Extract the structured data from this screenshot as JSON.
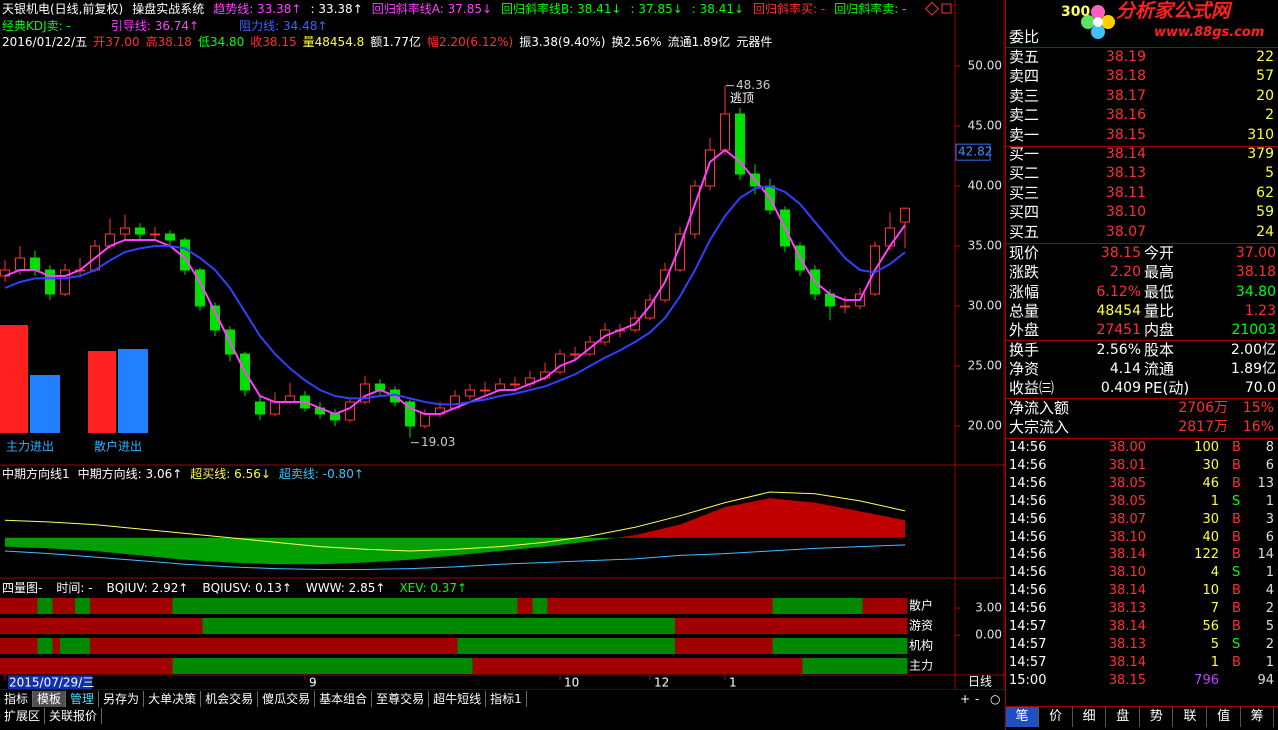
{
  "header": {
    "lines": [
      [
        {
          "text": "天银机电(日线,前复权)",
          "color": "#ffffff"
        },
        {
          "text": "操盘实战系统",
          "color": "#ffffff"
        },
        {
          "text": "趋势线: 33.38↑",
          "color": "#ff40ff"
        },
        {
          "text": ": 33.38↑",
          "color": "#ffffff"
        },
        {
          "text": "回归斜率线A: 37.85↓",
          "color": "#ff40ff"
        },
        {
          "text": "回归斜率线B: 38.41↓",
          "color": "#00ff00"
        },
        {
          "text": ": 37.85↓",
          "color": "#00ff00"
        },
        {
          "text": ": 38.41↓",
          "color": "#00ff00"
        },
        {
          "text": "回归斜率买: -",
          "color": "#ff3030"
        },
        {
          "text": "回归斜率卖: -",
          "color": "#00ff00"
        }
      ],
      [
        {
          "text": "经典KDJ卖: -",
          "color": "#00ff00"
        },
        {
          "text": "引导线: 36.74↑",
          "color": "#ff40ff"
        },
        {
          "text": "阻力线: 34.48↑",
          "color": "#4060ff"
        }
      ],
      [
        {
          "text": "2016/01/22/五",
          "color": "#ffffff"
        },
        {
          "text": "开37.00",
          "color": "#ff3030"
        },
        {
          "text": "高38.18",
          "color": "#ff3030"
        },
        {
          "text": "低34.80",
          "color": "#00ff00"
        },
        {
          "text": "收38.15",
          "color": "#ff3030"
        },
        {
          "text": "量48454.8",
          "color": "#ffff40"
        },
        {
          "text": "额1.77亿",
          "color": "#ffffff"
        },
        {
          "text": "幅2.20(6.12%)",
          "color": "#ff3030"
        },
        {
          "text": "振3.38(9.40%)",
          "color": "#ffffff"
        },
        {
          "text": "换2.56%",
          "color": "#ffffff"
        },
        {
          "text": "流通1.89亿",
          "color": "#ffffff"
        },
        {
          "text": "元器件",
          "color": "#ffffff"
        }
      ]
    ]
  },
  "chart": {
    "type": "candlestick",
    "up_color": "#ff3232",
    "down_color": "#00e000",
    "ylim": [
      16.75,
      55.5
    ],
    "yticks": [
      {
        "value": 50,
        "label": "50.00"
      },
      {
        "value": 45,
        "label": "45.00"
      },
      {
        "value": 40,
        "label": "40.00"
      },
      {
        "value": 35,
        "label": "35.00"
      },
      {
        "value": 30,
        "label": "30.00"
      },
      {
        "value": 25,
        "label": "25.00"
      },
      {
        "value": 20,
        "label": "20.00"
      }
    ],
    "last_price": 42.82,
    "candles": [
      [
        32.5,
        33,
        33.8,
        32
      ],
      [
        33,
        34,
        35,
        32.6
      ],
      [
        34,
        33,
        34.6,
        32.5
      ],
      [
        33,
        31,
        33.4,
        30.5
      ],
      [
        31,
        33,
        33.5,
        30.8
      ],
      [
        33,
        33,
        34,
        32.4
      ],
      [
        33,
        35,
        35.5,
        32.8
      ],
      [
        35,
        36,
        37.3,
        34.8
      ],
      [
        36,
        36.5,
        37.6,
        35.6
      ],
      [
        36.5,
        36,
        36.9,
        35.4
      ],
      [
        36,
        36,
        36.6,
        35.5
      ],
      [
        36,
        35.5,
        36.3,
        35
      ],
      [
        35.5,
        33,
        35.7,
        32.6
      ],
      [
        33,
        30,
        33.2,
        29.6
      ],
      [
        30,
        28,
        30.3,
        27.5
      ],
      [
        28,
        26,
        28.3,
        25.4
      ],
      [
        26,
        23,
        26.2,
        22.5
      ],
      [
        22,
        21,
        22.5,
        20.5
      ],
      [
        21,
        22,
        22.8,
        20.8
      ],
      [
        22,
        22.5,
        23.6,
        21.8
      ],
      [
        22.5,
        21.5,
        22.9,
        21.2
      ],
      [
        21.5,
        21,
        22,
        20.6
      ],
      [
        21,
        20.5,
        21.4,
        20
      ],
      [
        20.5,
        22,
        22.4,
        20.3
      ],
      [
        22,
        23.5,
        24.2,
        21.8
      ],
      [
        23.5,
        23,
        23.9,
        22.6
      ],
      [
        23,
        22,
        23.3,
        21.6
      ],
      [
        22,
        20,
        22.2,
        19.03
      ],
      [
        20,
        21,
        21.4,
        19.8
      ],
      [
        21,
        21.5,
        22,
        20.7
      ],
      [
        21.5,
        22.5,
        23,
        21.3
      ],
      [
        22.5,
        23,
        23.5,
        22.2
      ],
      [
        23,
        23,
        23.7,
        22.6
      ],
      [
        23,
        23.5,
        24,
        22.8
      ],
      [
        23.5,
        23.5,
        24.1,
        23
      ],
      [
        23.5,
        24,
        24.6,
        23.2
      ],
      [
        24,
        24.5,
        25.3,
        23.8
      ],
      [
        24.5,
        26,
        26.4,
        24.3
      ],
      [
        26,
        26,
        26.6,
        25.5
      ],
      [
        26,
        27,
        27.5,
        25.8
      ],
      [
        27,
        28,
        28.6,
        26.7
      ],
      [
        28,
        28,
        28.5,
        27.4
      ],
      [
        28,
        29,
        29.6,
        27.8
      ],
      [
        29,
        30.5,
        31,
        28.8
      ],
      [
        30.5,
        33,
        33.6,
        30.3
      ],
      [
        33,
        36,
        36.6,
        32.8
      ],
      [
        36,
        40,
        40.5,
        35.6
      ],
      [
        40,
        43,
        44,
        39.6
      ],
      [
        43,
        46,
        48.36,
        42.6
      ],
      [
        46,
        41,
        46.5,
        40.5
      ],
      [
        41,
        40,
        41.8,
        39.3
      ],
      [
        40,
        38,
        40.6,
        37.6
      ],
      [
        38,
        35,
        38.3,
        34.5
      ],
      [
        35,
        33,
        35.3,
        32.5
      ],
      [
        33,
        31,
        33.4,
        30.5
      ],
      [
        31,
        30,
        31.4,
        28.8
      ],
      [
        30,
        30,
        30.8,
        29.4
      ],
      [
        30,
        31,
        31.5,
        29.7
      ],
      [
        31,
        35,
        35.4,
        30.8
      ],
      [
        35,
        36.5,
        37.8,
        34.7
      ],
      [
        37,
        38.15,
        38.18,
        34.8
      ]
    ],
    "lines": [
      {
        "color": "#ff40ff",
        "values": [
          32.5,
          33,
          33,
          32.5,
          32.5,
          33,
          34,
          35,
          35.5,
          35.5,
          35.5,
          35,
          34,
          32,
          29.5,
          27,
          24.5,
          22.5,
          22,
          22,
          22,
          21.5,
          21,
          21.5,
          22.5,
          23,
          22.5,
          21.5,
          21,
          21,
          21.5,
          22,
          22.5,
          23,
          23,
          23.5,
          24,
          25,
          25.5,
          26.5,
          27.5,
          28,
          28.5,
          30,
          32,
          35,
          38.5,
          42,
          43,
          42,
          40.5,
          39,
          36.5,
          34,
          32,
          31,
          30.5,
          30.5,
          33,
          35,
          36.74
        ]
      },
      {
        "color": "#3040ff",
        "values": [
          31.5,
          32,
          32.3,
          32.3,
          32.3,
          32.5,
          33,
          33.8,
          34.5,
          34.8,
          35,
          35,
          34.8,
          34,
          33,
          31.5,
          29.5,
          27.5,
          26,
          24.8,
          23.8,
          23,
          22.5,
          22.3,
          22.3,
          22.5,
          22.6,
          22.3,
          22,
          21.8,
          21.8,
          22,
          22.2,
          22.5,
          22.7,
          23,
          23.3,
          23.8,
          24.3,
          25,
          25.7,
          26.3,
          27,
          27.8,
          29,
          30.8,
          33,
          35.5,
          37.5,
          39,
          39.8,
          40,
          39.5,
          38.5,
          37,
          35.5,
          34,
          33,
          32.8,
          33.5,
          34.48
        ]
      }
    ],
    "annotations": [
      {
        "value": 48.36,
        "index": 48
      },
      {
        "text": "逃顶",
        "index": 48,
        "price": 47.3
      },
      {
        "value": 19.03,
        "index": 27
      }
    ],
    "flow": {
      "colors": [
        "#ff2020",
        "#2080ff"
      ],
      "groups": [
        {
          "label": "主力进出",
          "values": [
            108,
            58
          ]
        },
        {
          "label": "散户进出",
          "values": [
            82,
            84
          ]
        }
      ]
    },
    "dates": [
      {
        "index": 0,
        "label": "2015/07/29/三"
      },
      {
        "index": 20,
        "label": "9"
      },
      {
        "index": 37,
        "label": "10"
      },
      {
        "index": 43,
        "label": "12"
      },
      {
        "index": 48,
        "label": "1"
      }
    ],
    "period": "日线"
  },
  "indicator": {
    "title_items": [
      {
        "text": "中期方向线1",
        "color": "#ffffff"
      },
      {
        "text": "中期方向线: 3.06↑",
        "color": "#ffffff"
      },
      {
        "text": "超买线: 6.56↓",
        "color": "#ffff40"
      },
      {
        "text": "超卖线: -0.80↑",
        "color": "#40c0ff"
      }
    ],
    "x": [
      0,
      3,
      6,
      9,
      12,
      15,
      18,
      21,
      24,
      27,
      30,
      33,
      36,
      39,
      42,
      45,
      48,
      51,
      54,
      57,
      60
    ],
    "ylim": [
      -4,
      6
    ],
    "pos_color": "#c00000",
    "neg_color": "#00a000",
    "histogram": [
      -1,
      -1.2,
      -1.5,
      -2,
      -2.5,
      -2.8,
      -3,
      -3,
      -2.8,
      -2.5,
      -2,
      -1.5,
      -1,
      -0.4,
      0.3,
      1.5,
      3.5,
      4.5,
      4,
      3,
      2
    ],
    "lines": [
      {
        "color": "#ffff60",
        "values": [
          2,
          1.8,
          1.5,
          1,
          0.5,
          0,
          -0.5,
          -1,
          -1.3,
          -1.5,
          -1.3,
          -1,
          -0.5,
          0.2,
          1.2,
          2.5,
          4,
          5.2,
          5,
          4.2,
          3.06
        ]
      },
      {
        "color": "#40c0ff",
        "values": [
          -1.5,
          -1.8,
          -2.2,
          -2.6,
          -3,
          -3.3,
          -3.5,
          -3.6,
          -3.6,
          -3.5,
          -3.3,
          -3,
          -2.8,
          -2.6,
          -2.4,
          -2,
          -1.8,
          -1.5,
          -1.2,
          -1,
          -0.8
        ]
      }
    ]
  },
  "quad": {
    "title_items": [
      {
        "text": "四量图-",
        "color": "#ffffff"
      },
      {
        "text": "时间: -",
        "color": "#ffffff"
      },
      {
        "text": "BQIUV: 2.92↑",
        "color": "#ffffff"
      },
      {
        "text": "BQIUSV: 0.13↑",
        "color": "#ffffff"
      },
      {
        "text": "WWW: 2.85↑",
        "color": "#ffffff"
      },
      {
        "text": "XEV: 0.37↑",
        "color": "#00ff00"
      }
    ],
    "ylim": [
      -4.4,
      5
    ],
    "yticks": [
      {
        "value": 3,
        "label": "3.00"
      },
      {
        "value": 0,
        "label": "0.00"
      }
    ],
    "rows": [
      {
        "label": "散户",
        "segments": [
          [
            0,
            2.5,
            "#a00000"
          ],
          [
            2.5,
            3.5,
            "#008800"
          ],
          [
            3.5,
            5,
            "#a00000"
          ],
          [
            5,
            6,
            "#008800"
          ],
          [
            6,
            11.5,
            "#a00000"
          ],
          [
            11.5,
            34.5,
            "#008800"
          ],
          [
            34.5,
            35.5,
            "#a00000"
          ],
          [
            35.5,
            36.5,
            "#008800"
          ],
          [
            36.5,
            51.5,
            "#a00000"
          ],
          [
            51.5,
            57.5,
            "#008800"
          ],
          [
            57.5,
            60.5,
            "#a00000"
          ]
        ]
      },
      {
        "label": "游资",
        "segments": [
          [
            0,
            13.5,
            "#a00000"
          ],
          [
            13.5,
            45,
            "#008800"
          ],
          [
            45,
            60.5,
            "#a00000"
          ]
        ]
      },
      {
        "label": "机构",
        "segments": [
          [
            0,
            2.5,
            "#a00000"
          ],
          [
            2.5,
            3.5,
            "#008800"
          ],
          [
            3.5,
            4,
            "#a00000"
          ],
          [
            4,
            6,
            "#008800"
          ],
          [
            6,
            30.5,
            "#a00000"
          ],
          [
            30.5,
            45,
            "#008800"
          ],
          [
            45,
            51.5,
            "#a00000"
          ],
          [
            51.5,
            60.5,
            "#008800"
          ]
        ]
      },
      {
        "label": "主力",
        "segments": [
          [
            0,
            11.5,
            "#a00000"
          ],
          [
            11.5,
            31.5,
            "#008800"
          ],
          [
            31.5,
            53.5,
            "#a00000"
          ],
          [
            53.5,
            60.5,
            "#008800"
          ]
        ]
      }
    ]
  },
  "toolbar": {
    "tabs": [
      "指标",
      "模板",
      "管理",
      "另存为",
      "大单决策",
      "机会交易",
      "傻瓜交易",
      "基本组合",
      "至尊交易",
      "超牛短线",
      "指标1"
    ],
    "tabs2": [
      "扩展区",
      "关联报价"
    ],
    "buttons": [
      "+",
      "-",
      "○"
    ]
  },
  "quote": {
    "code": "300",
    "watermark": {
      "title": "分析家公式网",
      "url": "www.88gs.com"
    },
    "weibi": "委比",
    "book": [
      [
        "卖五",
        "38.19",
        "22"
      ],
      [
        "卖四",
        "38.18",
        "57"
      ],
      [
        "卖三",
        "38.17",
        "20"
      ],
      [
        "卖二",
        "38.16",
        "2"
      ],
      [
        "卖一",
        "38.15",
        "310"
      ],
      [
        "买一",
        "38.14",
        "379"
      ],
      [
        "买二",
        "38.13",
        "5"
      ],
      [
        "买三",
        "38.11",
        "62"
      ],
      [
        "买四",
        "38.10",
        "59"
      ],
      [
        "买五",
        "38.07",
        "24"
      ]
    ],
    "stats": [
      [
        {
          "label": "现价",
          "value": "38.15",
          "color": "#ff3030"
        },
        {
          "label": "今开",
          "value": "37.00",
          "color": "#ff3030"
        }
      ],
      [
        {
          "label": "涨跌",
          "value": "2.20",
          "color": "#ff3030"
        },
        {
          "label": "最高",
          "value": "38.18",
          "color": "#ff3030"
        }
      ],
      [
        {
          "label": "涨幅",
          "value": "6.12%",
          "color": "#ff3030"
        },
        {
          "label": "最低",
          "value": "34.80",
          "color": "#00ff00"
        }
      ],
      [
        {
          "label": "总量",
          "value": "48454",
          "color": "#ffff40"
        },
        {
          "label": "量比",
          "value": "1.23",
          "color": "#ff3030"
        }
      ],
      [
        {
          "label": "外盘",
          "value": "27451",
          "color": "#ff3030"
        },
        {
          "label": "内盘",
          "value": "21003",
          "color": "#00ff00"
        }
      ]
    ],
    "stats2": [
      [
        {
          "label": "换手",
          "value": "2.56%",
          "color": "#ffffff"
        },
        {
          "label": "股本",
          "value": "2.00亿",
          "color": "#ffffff"
        }
      ],
      [
        {
          "label": "净资",
          "value": "4.14",
          "color": "#ffffff"
        },
        {
          "label": "流通",
          "value": "1.89亿",
          "color": "#ffffff"
        }
      ],
      [
        {
          "label": "收益㈢",
          "value": "0.409",
          "color": "#ffffff"
        },
        {
          "label": "PE(动)",
          "value": "70.0",
          "color": "#ffffff"
        }
      ]
    ],
    "flows": [
      {
        "label": "净流入额",
        "value": "2706万",
        "pct": "15%"
      },
      {
        "label": "大宗流入",
        "value": "2817万",
        "pct": "16%"
      }
    ],
    "ticks": [
      {
        "time": "14:56",
        "price": "38.00",
        "volume": "100",
        "side": "B",
        "count": "8"
      },
      {
        "time": "14:56",
        "price": "38.01",
        "volume": "30",
        "side": "B",
        "count": "6"
      },
      {
        "time": "14:56",
        "price": "38.05",
        "volume": "46",
        "side": "B",
        "count": "13"
      },
      {
        "time": "14:56",
        "price": "38.05",
        "volume": "1",
        "side": "S",
        "count": "1"
      },
      {
        "time": "14:56",
        "price": "38.07",
        "volume": "30",
        "side": "B",
        "count": "3"
      },
      {
        "time": "14:56",
        "price": "38.10",
        "volume": "40",
        "side": "B",
        "count": "6"
      },
      {
        "time": "14:56",
        "price": "38.14",
        "volume": "122",
        "side": "B",
        "count": "14"
      },
      {
        "time": "14:56",
        "price": "38.10",
        "volume": "4",
        "side": "S",
        "count": "1"
      },
      {
        "time": "14:56",
        "price": "38.14",
        "volume": "10",
        "side": "B",
        "count": "4"
      },
      {
        "time": "14:56",
        "price": "38.13",
        "volume": "7",
        "side": "B",
        "count": "2"
      },
      {
        "time": "14:57",
        "price": "38.14",
        "volume": "56",
        "side": "B",
        "count": "5"
      },
      {
        "time": "14:57",
        "price": "38.13",
        "volume": "5",
        "side": "S",
        "count": "2"
      },
      {
        "time": "14:57",
        "price": "38.14",
        "volume": "1",
        "side": "B",
        "count": "1"
      },
      {
        "time": "15:00",
        "price": "38.15",
        "volume": "796",
        "count": "94",
        "volume_color": "#c040ff"
      }
    ],
    "tabs": [
      "笔",
      "价",
      "细",
      "盘",
      "势",
      "联",
      "值",
      "筹"
    ]
  }
}
